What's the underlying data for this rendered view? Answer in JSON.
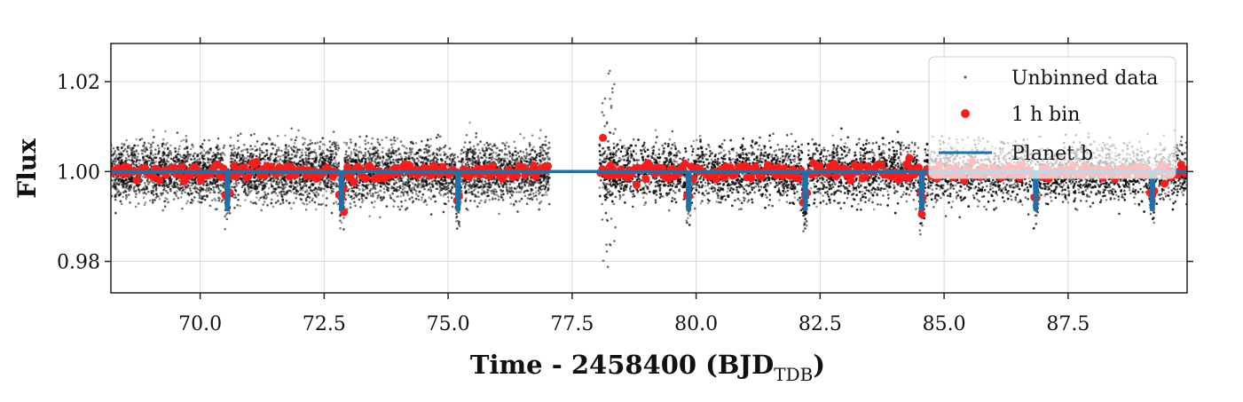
{
  "chart_data": {
    "type": "scatter",
    "xlabel": "Time - 2458400 (BJD",
    "xlabel_sub": "TDB",
    "xlabel_close": ")",
    "ylabel": "Flux",
    "xlim": [
      68.2,
      89.9
    ],
    "ylim": [
      0.973,
      1.0285
    ],
    "xticks": [
      70.0,
      72.5,
      75.0,
      77.5,
      80.0,
      82.5,
      85.0,
      87.5
    ],
    "xtick_labels": [
      "70.0",
      "72.5",
      "75.0",
      "77.5",
      "80.0",
      "82.5",
      "85.0",
      "87.5"
    ],
    "yticks": [
      0.98,
      1.0,
      1.02
    ],
    "ytick_labels": [
      "0.98",
      "1.00",
      "1.02"
    ],
    "grid": true,
    "legend_position": "top-right",
    "data_gap": [
      77.05,
      78.05
    ],
    "series": [
      {
        "name": "Unbinned data",
        "kind": "scatter",
        "color": "#000000",
        "baseline": 1.0,
        "scatter_sigma": 0.0045,
        "range": [
          [
            68.2,
            77.05
          ],
          [
            78.05,
            89.9
          ]
        ]
      },
      {
        "name": "1 h bin",
        "kind": "scatter",
        "color": "#ff1a1a",
        "baseline": 1.0,
        "scatter_sigma": 0.0012,
        "outliers": [
          {
            "x": 78.12,
            "y": 1.0075
          },
          {
            "x": 72.9,
            "y": 0.991
          },
          {
            "x": 84.55,
            "y": 0.9905
          },
          {
            "x": 84.3,
            "y": 1.003
          },
          {
            "x": 78.8,
            "y": 0.997
          }
        ]
      },
      {
        "name": "Planet b",
        "kind": "line",
        "color": "#1f6fa8",
        "baseline": 1.0,
        "transit_depth": 0.0085,
        "transit_times": [
          70.55,
          72.85,
          75.2,
          79.85,
          82.2,
          84.55,
          86.85,
          89.2
        ]
      }
    ]
  }
}
